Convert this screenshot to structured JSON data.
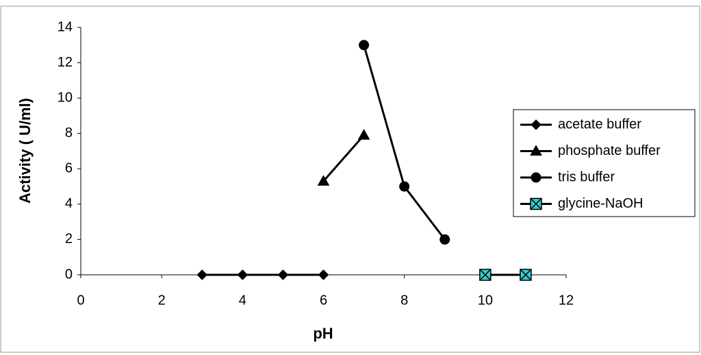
{
  "chart_data": {
    "type": "line",
    "xlabel": "pH",
    "ylabel": "Activity ( U/ml)",
    "xlim": [
      0,
      12
    ],
    "xticks": [
      0,
      2,
      4,
      6,
      8,
      10,
      12
    ],
    "ylim": [
      0,
      14
    ],
    "yticks": [
      0,
      2,
      4,
      6,
      8,
      10,
      12,
      14
    ],
    "grid": false,
    "legend": "right",
    "series": [
      {
        "name": "acetate buffer",
        "color": "#000000",
        "marker": "diamond",
        "marker_color": "#000000",
        "x": [
          3,
          4,
          5,
          6
        ],
        "values": [
          0,
          0,
          0,
          0
        ]
      },
      {
        "name": "phosphate buffer",
        "color": "#000000",
        "marker": "triangle",
        "marker_color": "#000000",
        "x": [
          6,
          7
        ],
        "values": [
          5.3,
          7.9
        ]
      },
      {
        "name": "tris buffer",
        "color": "#000000",
        "marker": "circle",
        "marker_color": "#000000",
        "x": [
          7,
          8,
          9
        ],
        "values": [
          13,
          5,
          2
        ]
      },
      {
        "name": "glycine-NaOH",
        "color": "#000000",
        "marker": "xsquare",
        "marker_color": "#33cccc",
        "x": [
          10,
          11
        ],
        "values": [
          0,
          0
        ]
      }
    ]
  }
}
